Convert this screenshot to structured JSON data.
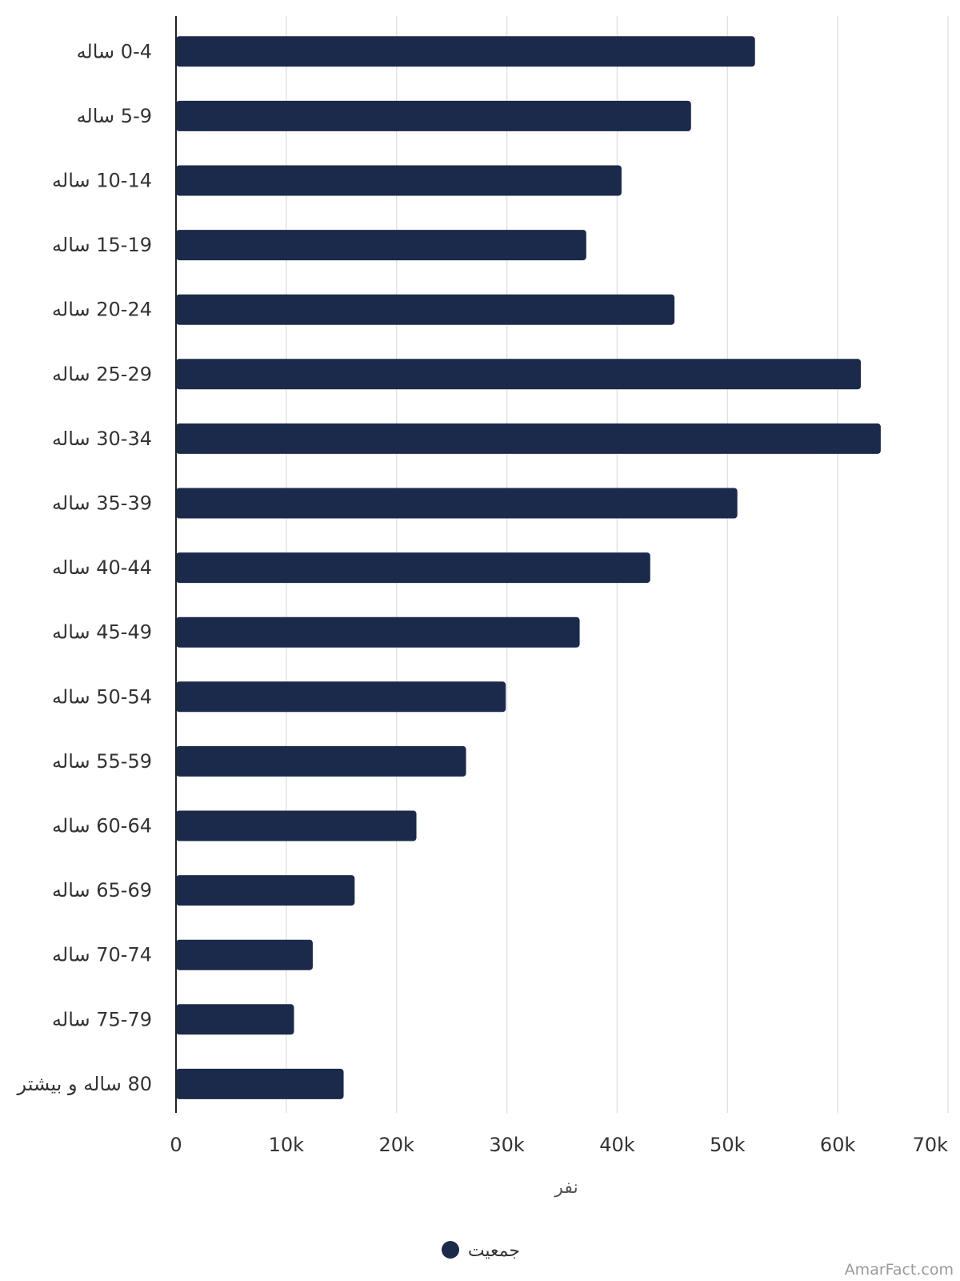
{
  "chart_data": {
    "type": "bar",
    "orientation": "horizontal",
    "categories": [
      "0-4 ساله",
      "5-9 ساله",
      "10-14 ساله",
      "15-19 ساله",
      "20-24 ساله",
      "25-29 ساله",
      "30-34 ساله",
      "35-39 ساله",
      "40-44 ساله",
      "45-49 ساله",
      "50-54 ساله",
      "55-59 ساله",
      "60-64 ساله",
      "65-69 ساله",
      "70-74 ساله",
      "75-79 ساله",
      "80 ساله و بیشتر"
    ],
    "series": [
      {
        "name": "جمعیت",
        "color": "#1b2a4a",
        "values": [
          52500,
          46700,
          40400,
          37200,
          45200,
          62100,
          63900,
          50900,
          43000,
          36600,
          29900,
          26300,
          21800,
          16200,
          12400,
          10700,
          15200
        ]
      }
    ],
    "xlim": [
      0,
      70000
    ],
    "xticks": [
      0,
      10000,
      20000,
      30000,
      40000,
      50000,
      60000,
      70000
    ],
    "xtick_labels": [
      "0",
      "10k",
      "20k",
      "30k",
      "40k",
      "50k",
      "60k",
      "70k"
    ],
    "xlabel": "نفر",
    "ylabel": "",
    "title": "",
    "grid": true,
    "legend": {
      "position": "bottom-center",
      "label": "جمعیت"
    }
  },
  "watermark": "AmarFact.com"
}
